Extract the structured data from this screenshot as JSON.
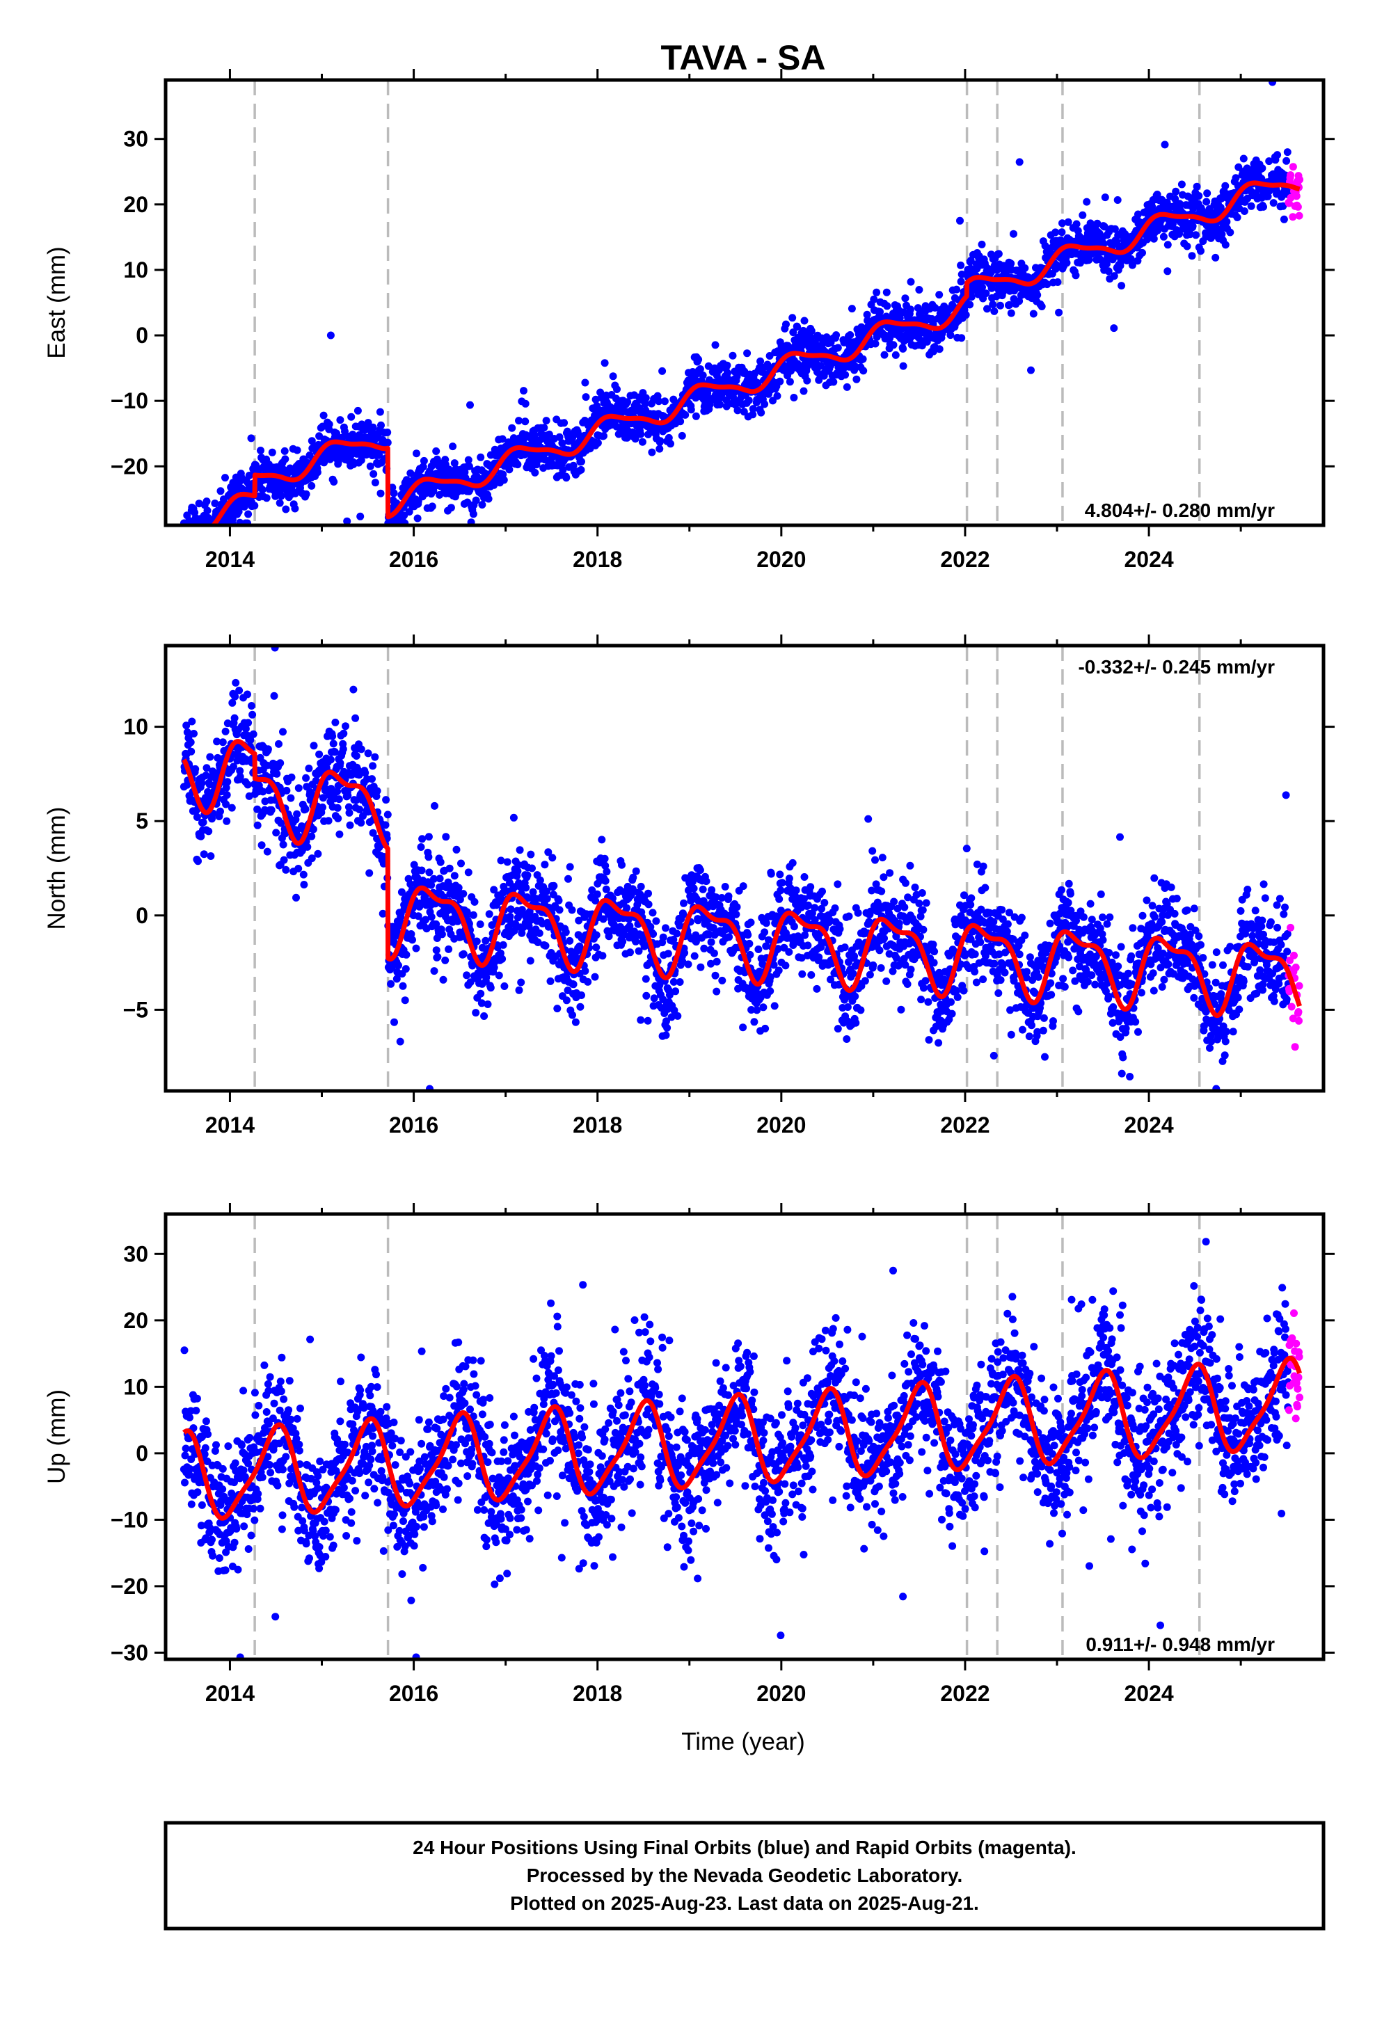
{
  "title": "TAVA - SA",
  "xlabel": "Time (year)",
  "footer": {
    "line1": "24 Hour Positions Using Final Orbits (blue) and Rapid Orbits (magenta).",
    "line2": "Processed by the Nevada Geodetic Laboratory.",
    "line3": "Plotted on 2025-Aug-23. Last data on 2025-Aug-21."
  },
  "colors": {
    "final_orbits": "#0000ff",
    "rapid_orbits": "#ff00ff",
    "model_fit": "#ff0000",
    "event_lines": "#bbbbbb"
  },
  "chart_data": [
    {
      "type": "scatter",
      "component": "east",
      "ylabel": "East (mm)",
      "xlim": [
        2013.3,
        2025.9
      ],
      "ylim": [
        -29,
        39
      ],
      "xticks": [
        2014,
        2016,
        2018,
        2020,
        2022,
        2024
      ],
      "xtick_labels": [
        "2014",
        "2016",
        "2018",
        "2020",
        "2022",
        "2024"
      ],
      "yticks": [
        -20,
        -10,
        0,
        10,
        20,
        30
      ],
      "ytick_labels": [
        "−20",
        "−10",
        "0",
        "10",
        "20",
        "30"
      ],
      "rate_text": "4.804+/- 0.280 mm/yr",
      "rate_position": "bottom-right",
      "event_lines": [
        2014.27,
        2015.72,
        2022.02,
        2022.35,
        2023.06,
        2024.55
      ],
      "data_start": 2013.5,
      "final_end": 2025.52,
      "data_end": 2025.64,
      "model": {
        "offset": -29.1,
        "rate": 4.804,
        "annual_amp": 1.7,
        "annual_phase": 0.5,
        "semi_amp": 0.5,
        "semi_phase": 1.2,
        "steps": [
          {
            "t": 2014.27,
            "d": 3.2
          },
          {
            "t": 2015.72,
            "d": -10.5
          },
          {
            "t": 2022.02,
            "d": 2.0
          }
        ],
        "noise": 1.9,
        "outliers": 0.02,
        "outlier_scale": 3.5,
        "seed": 11
      },
      "series": [
        {
          "name": "Final Orbits (blue)",
          "marker": "dot"
        },
        {
          "name": "Rapid Orbits (magenta)",
          "marker": "dot"
        },
        {
          "name": "Model fit",
          "marker": "line"
        }
      ]
    },
    {
      "type": "scatter",
      "component": "north",
      "ylabel": "North (mm)",
      "xlim": [
        2013.3,
        2025.9
      ],
      "ylim": [
        -9.3,
        14.3
      ],
      "xticks": [
        2014,
        2016,
        2018,
        2020,
        2022,
        2024
      ],
      "xtick_labels": [
        "2014",
        "2016",
        "2018",
        "2020",
        "2022",
        "2024"
      ],
      "yticks": [
        -5,
        0,
        5,
        10
      ],
      "ytick_labels": [
        "−5",
        "0",
        "5",
        "10"
      ],
      "rate_text": "-0.332+/- 0.245 mm/yr",
      "rate_position": "top-right",
      "event_lines": [
        2014.27,
        2015.72,
        2022.02,
        2022.35,
        2023.06,
        2024.55
      ],
      "data_start": 2013.5,
      "final_end": 2025.52,
      "data_end": 2025.64,
      "model": {
        "offset": 7.9,
        "rate": -0.332,
        "annual_amp": 1.7,
        "annual_phase": 0.2,
        "semi_amp": 0.7,
        "semi_phase": 1.5,
        "steps": [
          {
            "t": 2014.27,
            "d": -1.3
          },
          {
            "t": 2015.72,
            "d": -5.8
          }
        ],
        "noise": 1.3,
        "outliers": 0.02,
        "outlier_scale": 3.5,
        "seed": 23
      },
      "series": [
        {
          "name": "Final Orbits (blue)",
          "marker": "dot"
        },
        {
          "name": "Rapid Orbits (magenta)",
          "marker": "dot"
        },
        {
          "name": "Model fit",
          "marker": "line"
        }
      ]
    },
    {
      "type": "scatter",
      "component": "up",
      "ylabel": "Up (mm)",
      "xlim": [
        2013.3,
        2025.9
      ],
      "ylim": [
        -31,
        36
      ],
      "xticks": [
        2014,
        2016,
        2018,
        2020,
        2022,
        2024
      ],
      "xtick_labels": [
        "2014",
        "2016",
        "2018",
        "2020",
        "2022",
        "2024"
      ],
      "yticks": [
        -30,
        -20,
        -10,
        0,
        10,
        20,
        30
      ],
      "ytick_labels": [
        "−30",
        "−20",
        "−10",
        "0",
        "10",
        "20",
        "30"
      ],
      "rate_text": "0.911+/- 0.948 mm/yr",
      "rate_position": "bottom-right",
      "event_lines": [
        2014.27,
        2015.72,
        2022.02,
        2022.35,
        2023.06,
        2024.55
      ],
      "data_start": 2013.5,
      "final_end": 2025.52,
      "data_end": 2025.64,
      "model": {
        "offset": -3.8,
        "rate": 0.911,
        "annual_amp": 6.2,
        "annual_phase": -1.5,
        "semi_amp": 1.5,
        "semi_phase": 0.5,
        "steps": [],
        "noise": 5.0,
        "outliers": 0.03,
        "outlier_scale": 2.8,
        "seed": 37
      },
      "series": [
        {
          "name": "Final Orbits (blue)",
          "marker": "dot"
        },
        {
          "name": "Rapid Orbits (magenta)",
          "marker": "dot"
        },
        {
          "name": "Model fit",
          "marker": "line"
        }
      ]
    }
  ]
}
